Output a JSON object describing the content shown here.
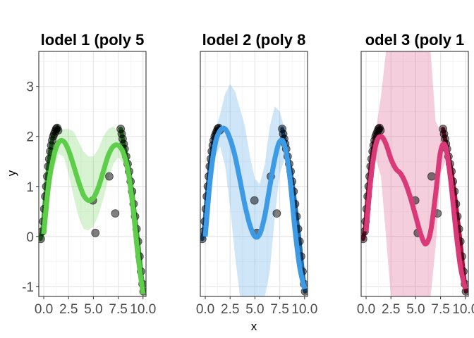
{
  "figure": {
    "xlabel": "x",
    "ylabel": "y"
  },
  "chart_data": {
    "type": "scatter",
    "shared_axes": true,
    "xlim": [
      -0.5,
      10.3
    ],
    "ylim": [
      -1.2,
      3.7
    ],
    "x_ticks": [
      0.0,
      2.5,
      5.0,
      7.5,
      10.0
    ],
    "x_tick_labels": [
      "0.0",
      "2.5",
      "5.0",
      "7.5",
      "10.0"
    ],
    "y_ticks": [
      -1,
      0,
      1,
      2,
      3
    ],
    "y_tick_labels": [
      "-1",
      "0",
      "1",
      "2",
      "3"
    ],
    "grid": true,
    "legend": "none",
    "observed_points": {
      "x": [
        -0.3,
        -0.15,
        -0.05,
        0.05,
        0.15,
        0.25,
        0.35,
        0.45,
        0.55,
        0.65,
        0.75,
        0.85,
        0.95,
        1.05,
        1.15,
        1.25,
        1.35,
        1.45,
        4.95,
        5.2,
        6.6,
        7.2,
        7.75,
        7.85,
        7.95,
        8.05,
        8.15,
        8.3,
        8.45,
        8.6,
        8.75,
        8.9,
        9.05,
        9.2,
        9.35,
        9.5,
        9.65,
        9.8,
        9.95,
        10.05
      ],
      "y": [
        -0.05,
        0.1,
        0.3,
        0.55,
        0.8,
        1.0,
        1.2,
        1.4,
        1.55,
        1.7,
        1.82,
        1.92,
        2.0,
        2.05,
        2.1,
        2.15,
        2.17,
        2.12,
        0.72,
        0.07,
        1.2,
        0.46,
        2.15,
        2.05,
        1.95,
        1.85,
        1.75,
        1.6,
        1.45,
        1.3,
        1.1,
        0.9,
        0.65,
        0.4,
        0.15,
        -0.1,
        -0.4,
        -0.7,
        -0.95,
        -1.1
      ],
      "color": "#000000",
      "opacity": 0.5
    },
    "panels": [
      {
        "title": "lodel 1 (poly 5",
        "fit_color": "#5ece4a",
        "band_color": "#5ece4a",
        "band_opacity": 0.25,
        "observed_line_color": "#33a02c",
        "fit": {
          "x": [
            0.0,
            0.5,
            1.0,
            1.5,
            2.0,
            2.5,
            3.0,
            3.5,
            4.0,
            4.5,
            5.0,
            5.5,
            6.0,
            6.5,
            7.0,
            7.5,
            8.0,
            8.5,
            9.0,
            9.5,
            10.0
          ],
          "y": [
            0.05,
            1.05,
            1.6,
            1.88,
            1.9,
            1.72,
            1.42,
            1.1,
            0.83,
            0.72,
            0.77,
            0.98,
            1.3,
            1.62,
            1.8,
            1.82,
            1.68,
            1.3,
            0.55,
            -0.4,
            -1.15
          ],
          "lower": [
            -0.15,
            0.8,
            1.35,
            1.65,
            1.6,
            1.25,
            0.8,
            0.4,
            0.15,
            0.12,
            0.2,
            0.42,
            0.75,
            1.15,
            1.45,
            1.58,
            1.48,
            1.1,
            0.3,
            -0.65,
            -1.3
          ],
          "upper": [
            0.25,
            1.3,
            1.85,
            2.1,
            2.15,
            2.15,
            2.1,
            1.9,
            1.7,
            1.6,
            1.6,
            1.75,
            2.0,
            2.15,
            2.2,
            2.1,
            1.9,
            1.5,
            0.8,
            -0.15,
            -1.0
          ]
        }
      },
      {
        "title": "lodel 2 (poly 8",
        "fit_color": "#3d9be5",
        "band_color": "#3d9be5",
        "band_opacity": 0.25,
        "observed_line_color": "#1f6bb0",
        "fit": {
          "x": [
            0.0,
            0.5,
            1.0,
            1.5,
            2.0,
            2.5,
            3.0,
            3.5,
            4.0,
            4.5,
            5.0,
            5.5,
            6.0,
            6.5,
            7.0,
            7.5,
            8.0,
            8.5,
            9.0,
            9.5,
            10.0
          ],
          "y": [
            0.0,
            1.15,
            1.85,
            2.12,
            2.15,
            1.95,
            1.6,
            1.12,
            0.62,
            0.22,
            0.0,
            0.05,
            0.42,
            1.0,
            1.55,
            1.9,
            1.82,
            1.2,
            0.2,
            -0.6,
            -1.05
          ],
          "lower": [
            -0.2,
            0.9,
            1.6,
            1.8,
            1.4,
            0.6,
            -0.4,
            -1.2,
            -1.2,
            -1.2,
            -1.2,
            -1.2,
            -1.2,
            -0.7,
            0.4,
            1.25,
            1.55,
            1.0,
            0.0,
            -0.8,
            -1.2
          ],
          "upper": [
            0.2,
            1.4,
            2.1,
            2.45,
            2.85,
            3.05,
            2.9,
            2.55,
            2.2,
            1.6,
            1.15,
            1.05,
            1.45,
            2.2,
            2.6,
            2.5,
            2.15,
            1.45,
            0.45,
            -0.4,
            -0.9
          ]
        }
      },
      {
        "title": "odel 3 (poly 1",
        "fit_color": "#d93a77",
        "band_color": "#d93a77",
        "band_opacity": 0.25,
        "observed_line_color": "#a8103c",
        "fit": {
          "x": [
            0.0,
            0.5,
            1.0,
            1.5,
            2.0,
            2.5,
            3.0,
            3.5,
            4.0,
            4.5,
            5.0,
            5.5,
            6.0,
            6.5,
            7.0,
            7.5,
            8.0,
            8.5,
            9.0,
            9.5,
            10.0
          ],
          "y": [
            0.1,
            1.2,
            1.85,
            2.0,
            1.85,
            1.55,
            1.35,
            1.25,
            1.05,
            0.75,
            0.4,
            0.05,
            -0.15,
            0.1,
            0.85,
            1.7,
            1.8,
            1.15,
            0.2,
            -0.6,
            -1.05
          ],
          "lower": [
            -0.1,
            0.95,
            1.55,
            1.2,
            0.0,
            -1.2,
            -1.2,
            -1.2,
            -1.2,
            -1.2,
            -1.2,
            -1.2,
            -1.2,
            -1.2,
            -0.2,
            1.25,
            1.5,
            0.95,
            0.0,
            -0.8,
            -1.2
          ],
          "upper": [
            0.3,
            1.45,
            2.15,
            2.8,
            3.7,
            3.7,
            3.7,
            3.7,
            3.7,
            3.7,
            3.7,
            3.7,
            3.7,
            3.7,
            2.3,
            2.1,
            2.1,
            1.4,
            0.45,
            -0.4,
            -0.9
          ]
        }
      }
    ]
  }
}
